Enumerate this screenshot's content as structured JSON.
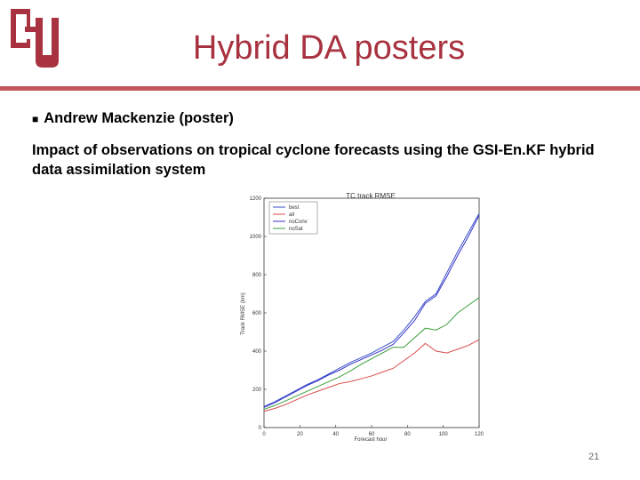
{
  "slide": {
    "title": "Hybrid DA posters",
    "bullet": "Andrew Mackenzie (poster)",
    "description": "Impact of observations on tropical cyclone forecasts using the GSI-En.KF hybrid data assimilation system",
    "page_number": "21"
  },
  "colors": {
    "title": "#a8323f",
    "rule": "#c2585b",
    "logo": "#a8323f"
  },
  "chart_data": {
    "type": "line",
    "title": "TC track RMSE",
    "xlabel": "Forecast hour",
    "ylabel": "Track RMSE (km)",
    "xlim": [
      0,
      120
    ],
    "ylim": [
      0,
      1200
    ],
    "x_ticks": [
      0,
      20,
      40,
      60,
      80,
      100,
      120
    ],
    "y_ticks": [
      0,
      200,
      400,
      600,
      800,
      1000,
      1200
    ],
    "legend_position": "top-left",
    "x": [
      0,
      6,
      12,
      18,
      24,
      30,
      36,
      42,
      48,
      54,
      60,
      66,
      72,
      78,
      84,
      90,
      96,
      102,
      108,
      114,
      120
    ],
    "series": [
      {
        "name": "best",
        "color": "#3b4fc8",
        "values": [
          110,
          135,
          165,
          195,
          225,
          250,
          280,
          310,
          340,
          365,
          390,
          420,
          450,
          510,
          580,
          660,
          700,
          810,
          920,
          1020,
          1120
        ]
      },
      {
        "name": "all",
        "color": "#d94a4a",
        "values": [
          85,
          100,
          120,
          145,
          170,
          190,
          210,
          230,
          240,
          255,
          270,
          290,
          310,
          350,
          390,
          440,
          400,
          390,
          410,
          430,
          460
        ]
      },
      {
        "name": "noConv",
        "color": "#3636c8",
        "values": [
          105,
          130,
          160,
          190,
          220,
          245,
          275,
          300,
          330,
          355,
          380,
          405,
          435,
          495,
          560,
          650,
          690,
          790,
          900,
          1000,
          1110
        ]
      },
      {
        "name": "noSat",
        "color": "#3a9e3a",
        "values": [
          95,
          115,
          140,
          165,
          190,
          215,
          240,
          265,
          295,
          330,
          360,
          390,
          420,
          420,
          470,
          520,
          510,
          540,
          600,
          640,
          680
        ]
      }
    ]
  }
}
